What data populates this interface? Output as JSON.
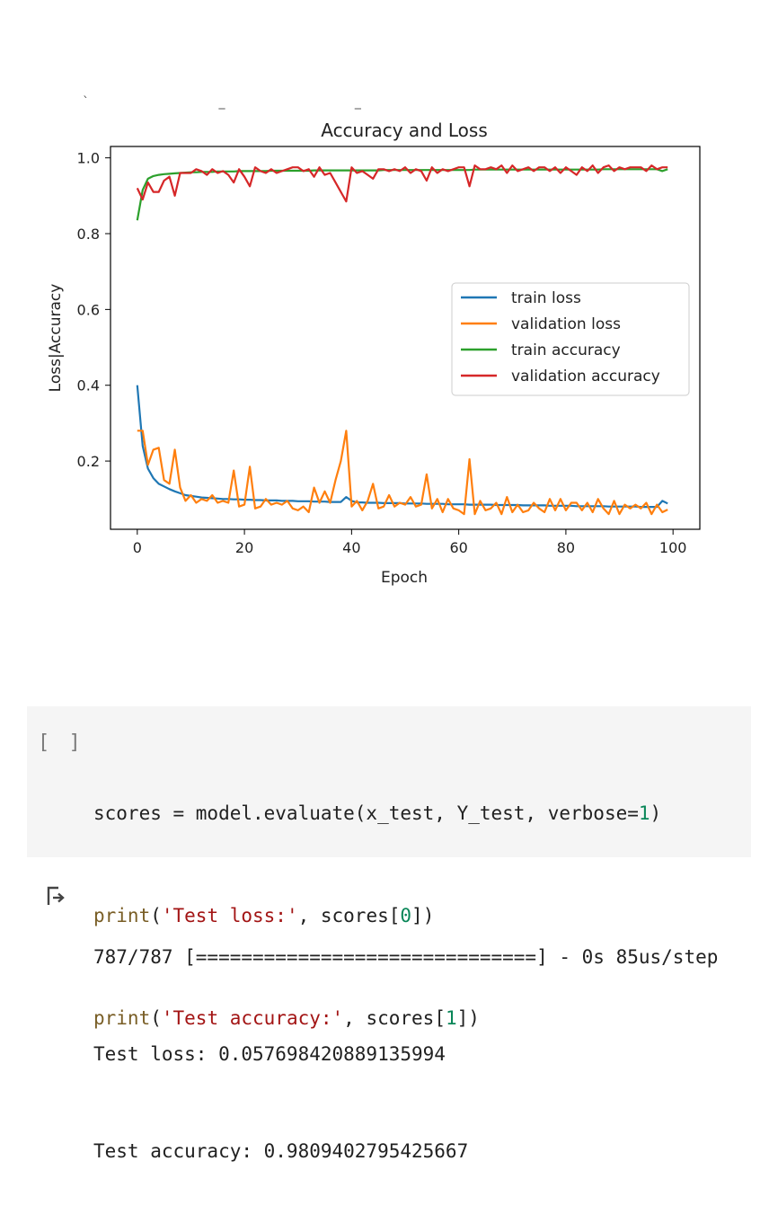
{
  "cell_output_top": {
    "partial_text": "` _ _"
  },
  "chart_data": {
    "type": "line",
    "title": "Accuracy and Loss",
    "xlabel": "Epoch",
    "ylabel": "Loss|Accuracy",
    "xlim": [
      -5,
      105
    ],
    "ylim": [
      0.02,
      1.03
    ],
    "xticks": [
      0,
      20,
      40,
      60,
      80,
      100
    ],
    "xtick_labels": [
      "0",
      "20",
      "40",
      "60",
      "80",
      "100"
    ],
    "yticks": [
      0.2,
      0.4,
      0.6,
      0.8,
      1.0
    ],
    "ytick_labels": [
      "0.2",
      "0.4",
      "0.6",
      "0.8",
      "1.0"
    ],
    "grid": false,
    "legend_position": "center-right",
    "x": [
      0,
      1,
      2,
      3,
      4,
      5,
      6,
      7,
      8,
      9,
      10,
      11,
      12,
      13,
      14,
      15,
      16,
      17,
      18,
      19,
      20,
      21,
      22,
      23,
      24,
      25,
      26,
      27,
      28,
      29,
      30,
      31,
      32,
      33,
      34,
      35,
      36,
      37,
      38,
      39,
      40,
      41,
      42,
      43,
      44,
      45,
      46,
      47,
      48,
      49,
      50,
      51,
      52,
      53,
      54,
      55,
      56,
      57,
      58,
      59,
      60,
      61,
      62,
      63,
      64,
      65,
      66,
      67,
      68,
      69,
      70,
      71,
      72,
      73,
      74,
      75,
      76,
      77,
      78,
      79,
      80,
      81,
      82,
      83,
      84,
      85,
      86,
      87,
      88,
      89,
      90,
      91,
      92,
      93,
      94,
      95,
      96,
      97,
      98,
      99
    ],
    "series": [
      {
        "name": "train loss",
        "color": "#1f77b4",
        "values": [
          0.4,
          0.24,
          0.18,
          0.155,
          0.14,
          0.133,
          0.126,
          0.12,
          0.115,
          0.11,
          0.108,
          0.106,
          0.104,
          0.103,
          0.102,
          0.101,
          0.1,
          0.1,
          0.099,
          0.099,
          0.098,
          0.098,
          0.097,
          0.097,
          0.096,
          0.096,
          0.096,
          0.095,
          0.095,
          0.095,
          0.094,
          0.094,
          0.094,
          0.093,
          0.093,
          0.093,
          0.092,
          0.092,
          0.092,
          0.105,
          0.095,
          0.091,
          0.091,
          0.09,
          0.09,
          0.09,
          0.089,
          0.089,
          0.089,
          0.089,
          0.088,
          0.088,
          0.088,
          0.088,
          0.087,
          0.087,
          0.087,
          0.087,
          0.086,
          0.086,
          0.086,
          0.086,
          0.085,
          0.085,
          0.085,
          0.085,
          0.085,
          0.084,
          0.084,
          0.084,
          0.084,
          0.084,
          0.083,
          0.083,
          0.083,
          0.083,
          0.083,
          0.082,
          0.082,
          0.082,
          0.082,
          0.082,
          0.081,
          0.081,
          0.081,
          0.081,
          0.081,
          0.081,
          0.08,
          0.08,
          0.08,
          0.08,
          0.08,
          0.08,
          0.079,
          0.079,
          0.079,
          0.079,
          0.095,
          0.088
        ]
      },
      {
        "name": "validation loss",
        "color": "#ff7f0e",
        "values": [
          0.28,
          0.28,
          0.19,
          0.23,
          0.235,
          0.15,
          0.14,
          0.23,
          0.13,
          0.095,
          0.11,
          0.09,
          0.1,
          0.095,
          0.11,
          0.09,
          0.095,
          0.09,
          0.175,
          0.08,
          0.085,
          0.185,
          0.075,
          0.08,
          0.1,
          0.085,
          0.09,
          0.085,
          0.095,
          0.075,
          0.07,
          0.08,
          0.065,
          0.13,
          0.09,
          0.12,
          0.09,
          0.15,
          0.2,
          0.28,
          0.08,
          0.095,
          0.07,
          0.095,
          0.14,
          0.075,
          0.08,
          0.11,
          0.08,
          0.09,
          0.085,
          0.105,
          0.08,
          0.085,
          0.165,
          0.075,
          0.1,
          0.065,
          0.1,
          0.075,
          0.07,
          0.06,
          0.205,
          0.06,
          0.095,
          0.07,
          0.075,
          0.09,
          0.06,
          0.105,
          0.065,
          0.085,
          0.065,
          0.07,
          0.09,
          0.075,
          0.065,
          0.1,
          0.07,
          0.1,
          0.07,
          0.09,
          0.09,
          0.07,
          0.09,
          0.065,
          0.1,
          0.075,
          0.06,
          0.095,
          0.06,
          0.085,
          0.075,
          0.085,
          0.075,
          0.09,
          0.06,
          0.085,
          0.065,
          0.072
        ]
      },
      {
        "name": "train accuracy",
        "color": "#2ca02c",
        "values": [
          0.835,
          0.915,
          0.945,
          0.952,
          0.955,
          0.957,
          0.958,
          0.959,
          0.96,
          0.961,
          0.962,
          0.962,
          0.963,
          0.963,
          0.963,
          0.964,
          0.964,
          0.964,
          0.964,
          0.965,
          0.965,
          0.965,
          0.965,
          0.965,
          0.965,
          0.966,
          0.966,
          0.966,
          0.966,
          0.966,
          0.966,
          0.966,
          0.966,
          0.967,
          0.967,
          0.967,
          0.967,
          0.967,
          0.967,
          0.967,
          0.967,
          0.967,
          0.967,
          0.967,
          0.967,
          0.967,
          0.968,
          0.968,
          0.968,
          0.968,
          0.968,
          0.968,
          0.968,
          0.968,
          0.968,
          0.968,
          0.968,
          0.968,
          0.968,
          0.968,
          0.968,
          0.968,
          0.968,
          0.969,
          0.969,
          0.969,
          0.969,
          0.969,
          0.969,
          0.969,
          0.969,
          0.969,
          0.969,
          0.969,
          0.969,
          0.969,
          0.969,
          0.969,
          0.969,
          0.969,
          0.969,
          0.969,
          0.969,
          0.969,
          0.969,
          0.969,
          0.969,
          0.97,
          0.97,
          0.97,
          0.97,
          0.97,
          0.97,
          0.97,
          0.97,
          0.97,
          0.97,
          0.97,
          0.965,
          0.97
        ]
      },
      {
        "name": "validation accuracy",
        "color": "#d62728",
        "values": [
          0.92,
          0.89,
          0.935,
          0.91,
          0.91,
          0.94,
          0.95,
          0.9,
          0.96,
          0.96,
          0.96,
          0.97,
          0.965,
          0.955,
          0.97,
          0.96,
          0.965,
          0.955,
          0.935,
          0.97,
          0.95,
          0.925,
          0.975,
          0.965,
          0.96,
          0.97,
          0.96,
          0.965,
          0.97,
          0.975,
          0.975,
          0.965,
          0.97,
          0.95,
          0.975,
          0.955,
          0.96,
          0.935,
          0.91,
          0.885,
          0.975,
          0.96,
          0.965,
          0.955,
          0.945,
          0.97,
          0.97,
          0.965,
          0.97,
          0.965,
          0.975,
          0.96,
          0.97,
          0.965,
          0.94,
          0.975,
          0.96,
          0.97,
          0.965,
          0.97,
          0.975,
          0.975,
          0.925,
          0.98,
          0.97,
          0.97,
          0.975,
          0.97,
          0.98,
          0.96,
          0.98,
          0.965,
          0.97,
          0.975,
          0.965,
          0.975,
          0.975,
          0.965,
          0.975,
          0.96,
          0.975,
          0.965,
          0.955,
          0.975,
          0.965,
          0.98,
          0.96,
          0.975,
          0.98,
          0.965,
          0.975,
          0.97,
          0.975,
          0.975,
          0.975,
          0.965,
          0.98,
          0.97,
          0.975,
          0.975
        ]
      }
    ]
  },
  "code_cell": {
    "run_indicator": "[ ]",
    "line1": {
      "a": "scores = model.evaluate(x_test, Y_test, verbose=",
      "num": "1",
      "b": ")"
    },
    "line2": {
      "fn": "print",
      "open": "(",
      "str": "'Test loss:'",
      "mid": ", scores[",
      "num": "0",
      "close": "])"
    },
    "line3": {
      "fn": "print",
      "open": "(",
      "str": "'Test accuracy:'",
      "mid": ", scores[",
      "num": "1",
      "close": "])"
    }
  },
  "output": {
    "icon": "output-redirect-icon",
    "progress_line": "787/787 [==============================] - 0s 85us/step",
    "loss_line": "Test loss: 0.057698420889135994",
    "accuracy_line": "Test accuracy: 0.9809402795425667"
  }
}
